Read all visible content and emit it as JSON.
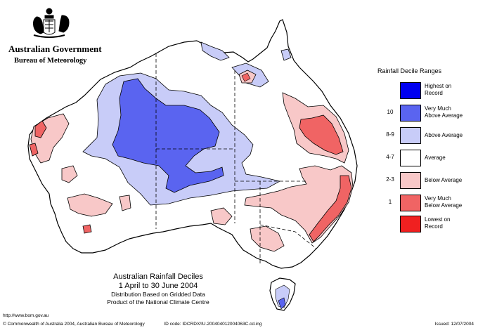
{
  "header": {
    "government": "Australian Government",
    "bureau": "Bureau of Meteorology"
  },
  "legend": {
    "title": "Rainfall Decile Ranges",
    "items": [
      {
        "code": "",
        "label_line1": "Highest on",
        "label_line2": "Record",
        "color": "#0000f0"
      },
      {
        "code": "10",
        "label_line1": "Very Much",
        "label_line2": "Above Average",
        "color": "#5a64f0"
      },
      {
        "code": "8-9",
        "label_line1": "Above Average",
        "label_line2": "",
        "color": "#c8ccf8"
      },
      {
        "code": "4-7",
        "label_line1": "Average",
        "label_line2": "",
        "color": "#ffffff"
      },
      {
        "code": "2-3",
        "label_line1": "Below Average",
        "label_line2": "",
        "color": "#f8c8c8"
      },
      {
        "code": "1",
        "label_line1": "Very Much",
        "label_line2": "Below Average",
        "color": "#f06464"
      },
      {
        "code": "",
        "label_line1": "Lowest on",
        "label_line2": "Record",
        "color": "#f02020"
      }
    ]
  },
  "caption": {
    "title_line1": "Australian Rainfall Deciles",
    "title_line2": "1 April to 30 June 2004",
    "note_line1": "Distribution Based on Gridded Data",
    "note_line2": "Product of the National Climate Centre"
  },
  "footer": {
    "url": "http://www.bom.gov.au",
    "copyright": "© Commonwealth of Australia 2004, Australian Bureau of Meteorology",
    "id_code": "ID code: IDCRDX/IU.200404012004063C.cd.ing",
    "issued": "Issued: 12/07/2004"
  },
  "colors": {
    "outline": "#000000",
    "above": "#c8ccf8",
    "very_much_above": "#5a64f0",
    "below": "#f8c8c8",
    "very_much_below": "#f06464",
    "lowest": "#f02020"
  }
}
